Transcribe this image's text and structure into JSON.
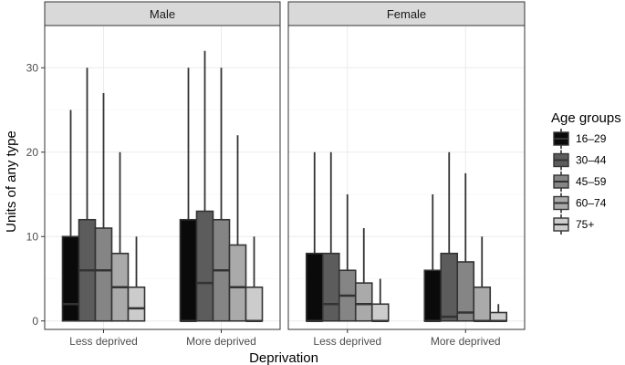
{
  "chart_data": {
    "type": "boxplot",
    "facets": [
      "Male",
      "Female"
    ],
    "categories": [
      "Less deprived",
      "More deprived"
    ],
    "xlabel": "Deprivation",
    "ylabel": "Units of any type",
    "ylim": [
      -1,
      35
    ],
    "yticks": [
      0,
      10,
      20,
      30
    ],
    "legend": {
      "title": "Age groups",
      "position": "right",
      "groups": [
        "16–29",
        "30–44",
        "45–59",
        "60–74",
        "75+"
      ]
    },
    "colors": [
      "#0a0a0a",
      "#5c5c5c",
      "#858585",
      "#aaaaaa",
      "#cccccc"
    ],
    "boxes": [
      {
        "facet": "Male",
        "category": "Less deprived",
        "group": "16–29",
        "min": 0,
        "q1": 0,
        "median": 2,
        "q3": 10,
        "max": 25
      },
      {
        "facet": "Male",
        "category": "Less deprived",
        "group": "30–44",
        "min": 0,
        "q1": 0,
        "median": 6,
        "q3": 12,
        "max": 30
      },
      {
        "facet": "Male",
        "category": "Less deprived",
        "group": "45–59",
        "min": 0,
        "q1": 0,
        "median": 6,
        "q3": 11,
        "max": 27
      },
      {
        "facet": "Male",
        "category": "Less deprived",
        "group": "60–74",
        "min": 0,
        "q1": 0,
        "median": 4,
        "q3": 8,
        "max": 20
      },
      {
        "facet": "Male",
        "category": "Less deprived",
        "group": "75+",
        "min": 0,
        "q1": 0,
        "median": 1.5,
        "q3": 4,
        "max": 10
      },
      {
        "facet": "Male",
        "category": "More deprived",
        "group": "16–29",
        "min": 0,
        "q1": 0,
        "median": 0,
        "q3": 12,
        "max": 30
      },
      {
        "facet": "Male",
        "category": "More deprived",
        "group": "30–44",
        "min": 0,
        "q1": 0,
        "median": 4.5,
        "q3": 13,
        "max": 32
      },
      {
        "facet": "Male",
        "category": "More deprived",
        "group": "45–59",
        "min": 0,
        "q1": 0,
        "median": 6,
        "q3": 12,
        "max": 30
      },
      {
        "facet": "Male",
        "category": "More deprived",
        "group": "60–74",
        "min": 0,
        "q1": 0,
        "median": 4,
        "q3": 9,
        "max": 22
      },
      {
        "facet": "Male",
        "category": "More deprived",
        "group": "75+",
        "min": 0,
        "q1": 0,
        "median": 0,
        "q3": 4,
        "max": 10
      },
      {
        "facet": "Female",
        "category": "Less deprived",
        "group": "16–29",
        "min": 0,
        "q1": 0,
        "median": 0,
        "q3": 8,
        "max": 20
      },
      {
        "facet": "Female",
        "category": "Less deprived",
        "group": "30–44",
        "min": 0,
        "q1": 0,
        "median": 2,
        "q3": 8,
        "max": 20
      },
      {
        "facet": "Female",
        "category": "Less deprived",
        "group": "45–59",
        "min": 0,
        "q1": 0,
        "median": 3,
        "q3": 6,
        "max": 15
      },
      {
        "facet": "Female",
        "category": "Less deprived",
        "group": "60–74",
        "min": 0,
        "q1": 0,
        "median": 2,
        "q3": 4.5,
        "max": 11
      },
      {
        "facet": "Female",
        "category": "Less deprived",
        "group": "75+",
        "min": 0,
        "q1": 0,
        "median": 0,
        "q3": 2,
        "max": 5
      },
      {
        "facet": "Female",
        "category": "More deprived",
        "group": "16–29",
        "min": 0,
        "q1": 0,
        "median": 0,
        "q3": 6,
        "max": 15
      },
      {
        "facet": "Female",
        "category": "More deprived",
        "group": "30–44",
        "min": 0,
        "q1": 0,
        "median": 0.5,
        "q3": 8,
        "max": 20
      },
      {
        "facet": "Female",
        "category": "More deprived",
        "group": "45–59",
        "min": 0,
        "q1": 0,
        "median": 1,
        "q3": 7,
        "max": 17.5
      },
      {
        "facet": "Female",
        "category": "More deprived",
        "group": "60–74",
        "min": 0,
        "q1": 0,
        "median": 0,
        "q3": 4,
        "max": 10
      },
      {
        "facet": "Female",
        "category": "More deprived",
        "group": "75+",
        "min": 0,
        "q1": 0,
        "median": 0,
        "q3": 1,
        "max": 2
      }
    ]
  }
}
